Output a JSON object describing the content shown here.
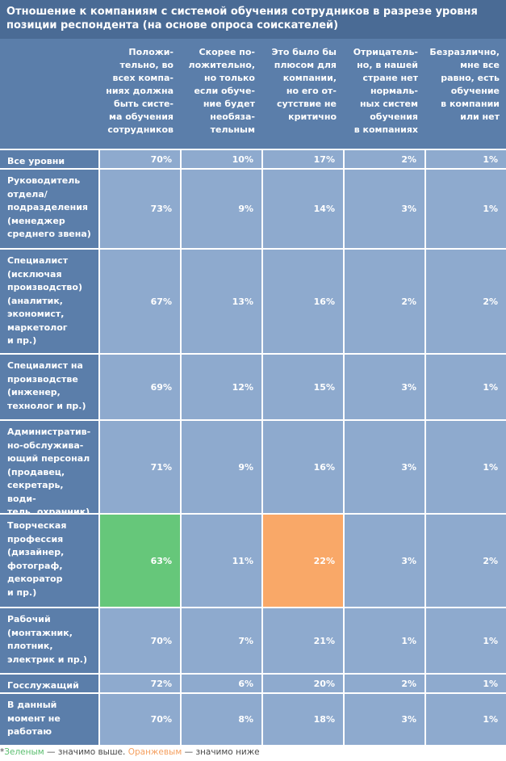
{
  "title": "Отношение к компаниям с системой обучения сотрудников в разрезе уровня позиции респондента (на основе опроса соискателей)",
  "columns": [
    [
      "Положи-",
      "тельно, во",
      "всех компа-",
      "ниях должна",
      "быть систе-",
      "ма обучения",
      "сотрудников"
    ],
    [
      "Скорее по-",
      "ложительно,",
      "но только",
      "если обуче-",
      "ние будет",
      "необяза-",
      "тельным"
    ],
    [
      "Это было бы",
      "плюсом для",
      "компании,",
      "но его от-",
      "сутствие не",
      "критично"
    ],
    [
      "Отрицатель-",
      "но, в нашей",
      "стране нет",
      "нормаль-",
      "ных систем",
      "обучения",
      "в компаниях"
    ],
    [
      "Безразлично,",
      "мне все",
      "равно, есть",
      "обучение",
      "в компании",
      "или нет"
    ]
  ],
  "rows": [
    {
      "label": [
        "Все уровни"
      ],
      "values": [
        "70%",
        "10%",
        "17%",
        "2%",
        "1%"
      ]
    },
    {
      "label": [
        "Руководитель",
        "отдела/",
        "подразделения",
        "(менеджер",
        "среднего звена)"
      ],
      "values": [
        "73%",
        "9%",
        "14%",
        "3%",
        "1%"
      ]
    },
    {
      "label": [
        "Специалист",
        "(исключая",
        "производство)",
        "(аналитик,",
        "экономист,",
        "маркетолог",
        "и пр.)"
      ],
      "values": [
        "67%",
        "13%",
        "16%",
        "2%",
        "2%"
      ]
    },
    {
      "label": [
        "Специалист на",
        "производстве",
        "(инженер,",
        "технолог и пр.)"
      ],
      "values": [
        "69%",
        "12%",
        "15%",
        "3%",
        "1%"
      ]
    },
    {
      "label": [
        "Административ-",
        "но-обслужива-",
        "ющий персонал",
        "(продавец,",
        "секретарь, води-",
        "тель, охранник)"
      ],
      "values": [
        "71%",
        "9%",
        "16%",
        "3%",
        "1%"
      ]
    },
    {
      "label": [
        "Творческая",
        "профессия",
        "(дизайнер,",
        "фотограф,",
        "декоратор",
        "и пр.)"
      ],
      "values": [
        "63%",
        "11%",
        "22%",
        "3%",
        "2%"
      ],
      "highlight": [
        "green",
        "",
        "orange",
        "",
        ""
      ]
    },
    {
      "label": [
        "Рабочий",
        "(монтажник,",
        "плотник,",
        "электрик и пр.)"
      ],
      "values": [
        "70%",
        "7%",
        "21%",
        "1%",
        "1%"
      ]
    },
    {
      "label": [
        "Госслужащий"
      ],
      "values": [
        "72%",
        "6%",
        "20%",
        "2%",
        "1%"
      ]
    },
    {
      "label": [
        "В данный",
        "момент не",
        "работаю"
      ],
      "values": [
        "70%",
        "8%",
        "18%",
        "3%",
        "1%"
      ]
    }
  ],
  "footnote": {
    "star": "*",
    "green": "Зеленым",
    "mid": " — значимо выше. ",
    "orange": "Оранжевым",
    "end": " — значимо ниже"
  },
  "colors": {
    "header": "#5b7eaa",
    "title": "#4a6b95",
    "cell": "#8eaace",
    "green": "#66c77a",
    "orange": "#f9a868"
  }
}
